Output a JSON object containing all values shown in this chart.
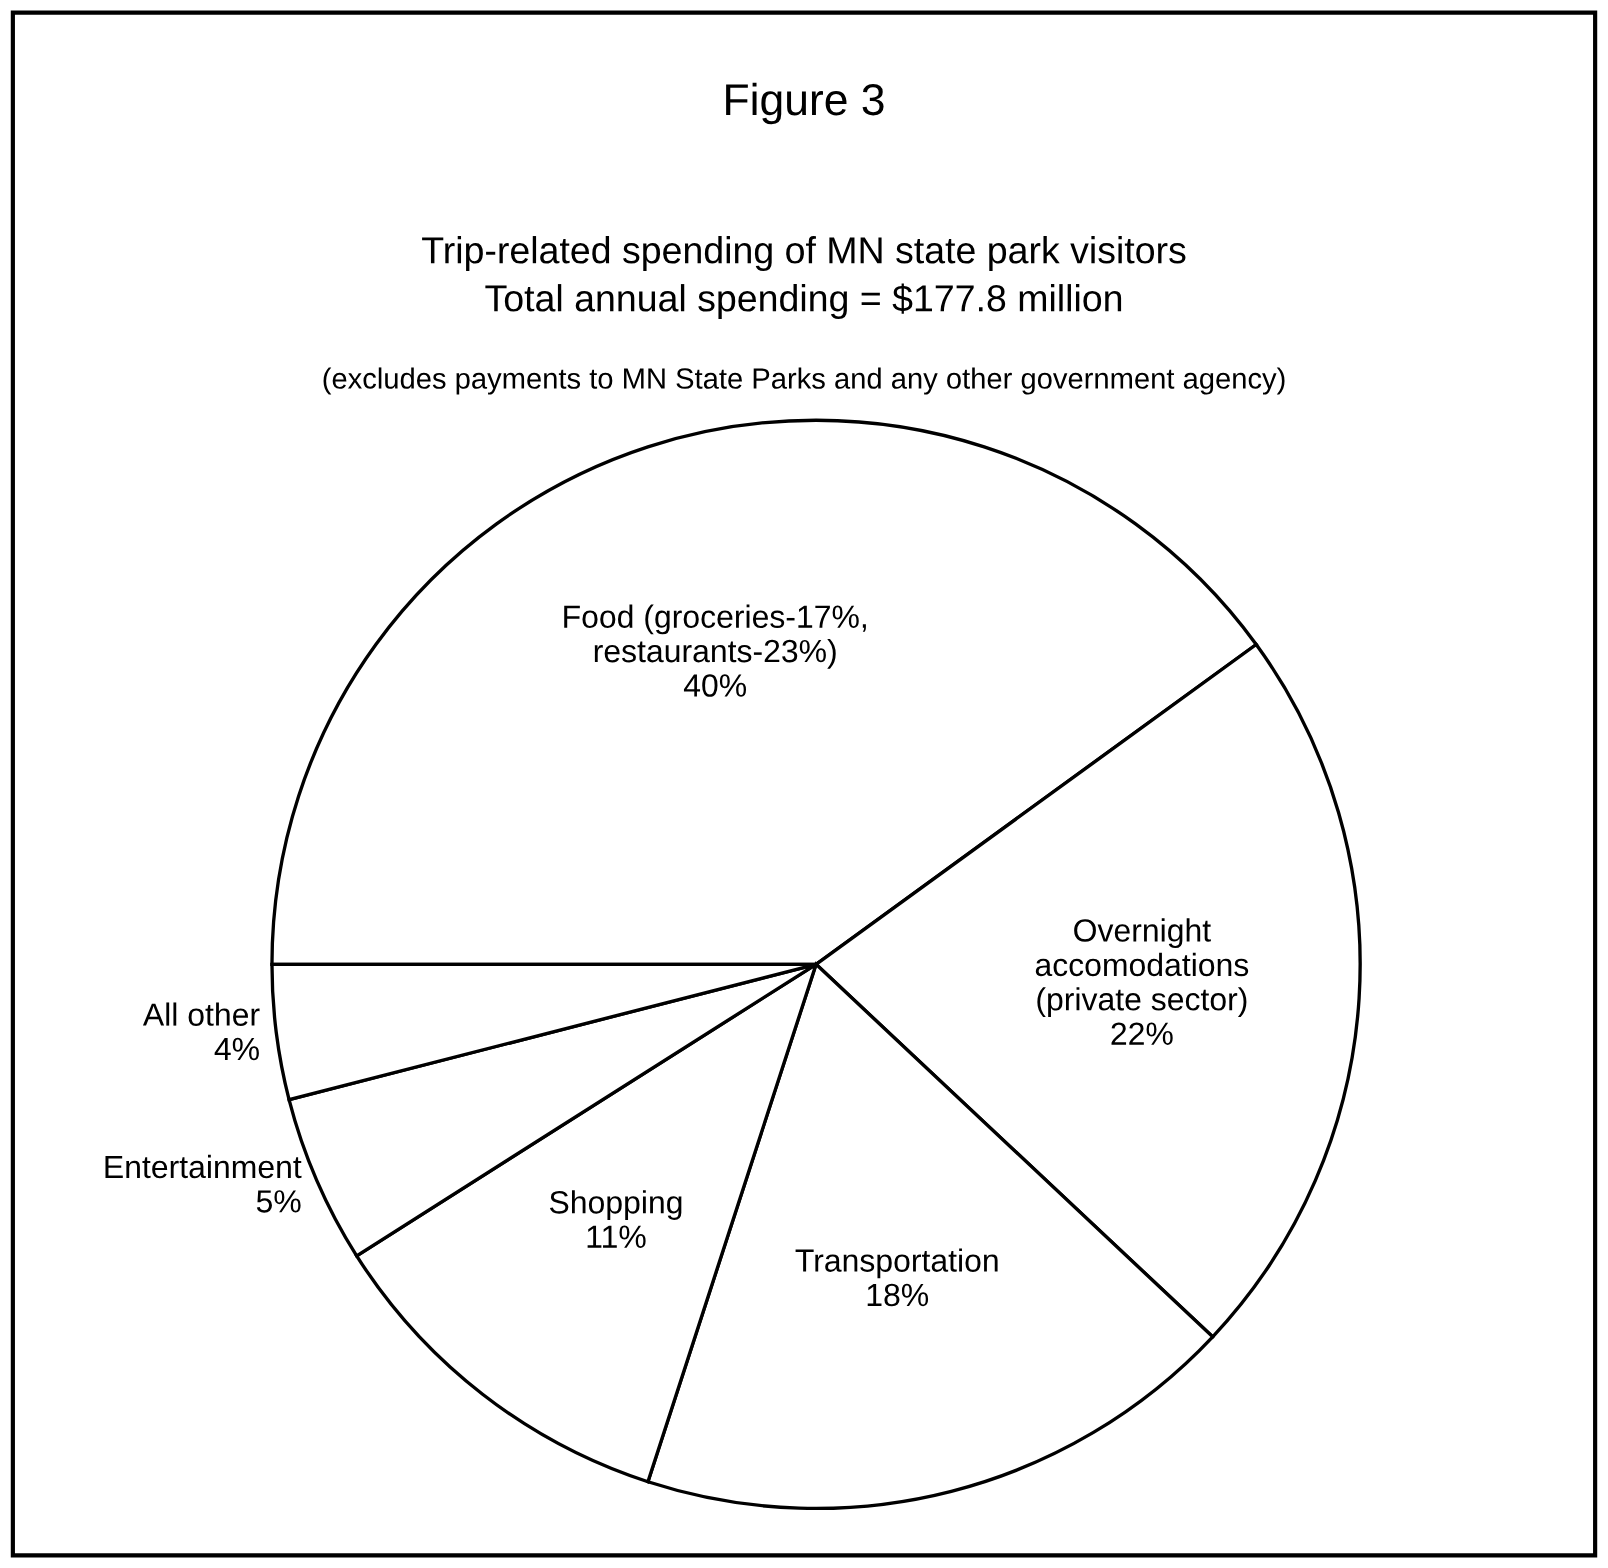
{
  "chart_data": {
    "type": "pie",
    "title": "Figure 3",
    "subtitle": "Trip-related spending of MN state park visitors\nTotal annual spending = $177.8 million",
    "annotations": [
      "(excludes payments to MN State Parks and any other government agency)"
    ],
    "categories": [
      "Food (groceries-17%,\nrestaurants-23%)",
      "Overnight\naccomodations\n(private sector)",
      "Transportation",
      "Shopping",
      "Entertainment",
      "All other"
    ],
    "values": [
      40,
      22,
      18,
      11,
      5,
      4
    ],
    "value_labels": [
      "40%",
      "22%",
      "18%",
      "11%",
      "5%",
      "4%"
    ],
    "colors": [
      "#ffffff",
      "#ffffff",
      "#ffffff",
      "#ffffff",
      "#ffffff",
      "#ffffff"
    ],
    "legend": false
  }
}
